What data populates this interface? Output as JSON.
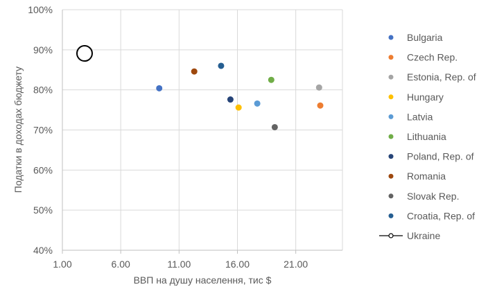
{
  "chart_data": {
    "type": "scatter",
    "title": "",
    "xlabel": "ВВП на душу населення, тис $",
    "ylabel": "Податки в доходах бюджету",
    "xlim": [
      1.0,
      25.0
    ],
    "ylim": [
      40,
      100
    ],
    "x_ticks": [
      1.0,
      6.0,
      11.0,
      16.0,
      21.0
    ],
    "x_tick_labels": [
      "1.00",
      "6.00",
      "11.00",
      "16.00",
      "21.00"
    ],
    "y_ticks": [
      40,
      50,
      60,
      70,
      80,
      90,
      100
    ],
    "y_tick_labels": [
      "40%",
      "50%",
      "60%",
      "70%",
      "80%",
      "90%",
      "100%"
    ],
    "grid": true,
    "legend_position": "right",
    "series": [
      {
        "name": "Bulgaria",
        "color": "#4472c4",
        "points": [
          {
            "x": 9.3,
            "y": 80.4
          }
        ]
      },
      {
        "name": "Czech Rep.",
        "color": "#ed7d31",
        "points": [
          {
            "x": 23.1,
            "y": 76.1
          }
        ]
      },
      {
        "name": "Estonia, Rep. of",
        "color": "#a5a5a5",
        "points": [
          {
            "x": 23.0,
            "y": 80.6
          }
        ]
      },
      {
        "name": "Hungary",
        "color": "#ffc000",
        "points": [
          {
            "x": 16.1,
            "y": 75.6
          }
        ]
      },
      {
        "name": "Latvia",
        "color": "#5b9bd5",
        "points": [
          {
            "x": 17.7,
            "y": 76.6
          }
        ]
      },
      {
        "name": "Lithuania",
        "color": "#70ad47",
        "points": [
          {
            "x": 18.9,
            "y": 82.5
          }
        ]
      },
      {
        "name": "Poland, Rep. of",
        "color": "#264478",
        "points": [
          {
            "x": 15.4,
            "y": 77.6
          }
        ]
      },
      {
        "name": "Romania",
        "color": "#9e480e",
        "points": [
          {
            "x": 12.3,
            "y": 84.6
          }
        ]
      },
      {
        "name": "Slovak Rep.",
        "color": "#636363",
        "points": [
          {
            "x": 19.2,
            "y": 70.7
          }
        ]
      },
      {
        "name": "Croatia, Rep. of",
        "color": "#255e91",
        "points": [
          {
            "x": 14.6,
            "y": 86.0
          }
        ]
      },
      {
        "name": "Ukraine",
        "color": "#000000",
        "hollow": true,
        "points": [
          {
            "x": 2.9,
            "y": 89.1
          }
        ]
      }
    ]
  }
}
